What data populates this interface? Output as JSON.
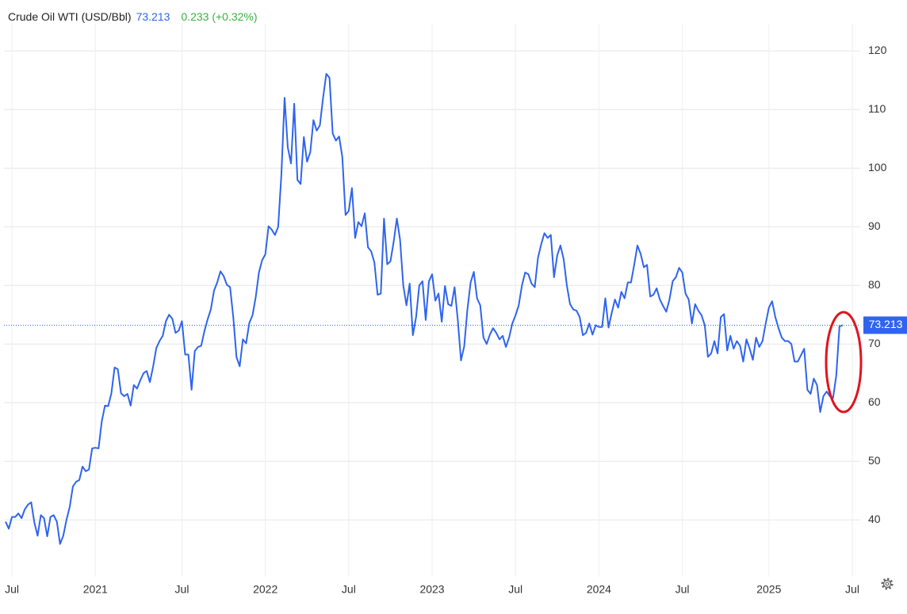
{
  "chart_data": {
    "type": "line",
    "title": "Crude Oil WTI (USD/Bbl)",
    "change": "0.233 (+0.32%)",
    "categories": [
      null,
      null,
      "Jul",
      null,
      null,
      null,
      null,
      null,
      null,
      null,
      null,
      null,
      null,
      null,
      null,
      null,
      null,
      null,
      null,
      null,
      null,
      null,
      null,
      null,
      null,
      null,
      null,
      null,
      "2021",
      null,
      null,
      null,
      null,
      null,
      null,
      null,
      null,
      null,
      null,
      null,
      null,
      null,
      null,
      null,
      null,
      null,
      null,
      null,
      null,
      null,
      null,
      null,
      null,
      null,
      null,
      "Jul",
      null,
      null,
      null,
      null,
      null,
      null,
      null,
      null,
      null,
      null,
      null,
      null,
      null,
      null,
      null,
      null,
      null,
      null,
      null,
      null,
      null,
      null,
      null,
      null,
      null,
      "2022",
      null,
      null,
      null,
      null,
      null,
      null,
      null,
      null,
      null,
      null,
      null,
      null,
      null,
      null,
      null,
      null,
      null,
      null,
      null,
      null,
      null,
      null,
      null,
      null,
      null,
      "Jul",
      null,
      null,
      null,
      null,
      null,
      null,
      null,
      null,
      null,
      null,
      null,
      null,
      null,
      null,
      null,
      null,
      null,
      null,
      null,
      null,
      null,
      null,
      null,
      null,
      null,
      "2023",
      null,
      null,
      null,
      null,
      null,
      null,
      null,
      null,
      null,
      null,
      null,
      null,
      null,
      null,
      null,
      null,
      null,
      null,
      null,
      null,
      null,
      null,
      null,
      null,
      null,
      "Jul",
      null,
      null,
      null,
      null,
      null,
      null,
      null,
      null,
      null,
      null,
      null,
      null,
      null,
      null,
      null,
      null,
      null,
      null,
      null,
      null,
      null,
      null,
      null,
      null,
      null,
      "2024",
      null,
      null,
      null,
      null,
      null,
      null,
      null,
      null,
      null,
      null,
      null,
      null,
      null,
      null,
      null,
      null,
      null,
      null,
      null,
      null,
      null,
      null,
      null,
      null,
      null,
      "Jul",
      null,
      null,
      null,
      null,
      null,
      null,
      null,
      null,
      null,
      null,
      null,
      null,
      null,
      null,
      null,
      null,
      null,
      null,
      null,
      null,
      null,
      null,
      null,
      null,
      null,
      null,
      "2025",
      null,
      null,
      null,
      null,
      null,
      null,
      null,
      null,
      null,
      null,
      null,
      null,
      null,
      null,
      null,
      null,
      null,
      null,
      null,
      null,
      null,
      null,
      null,
      null,
      null,
      "Jul"
    ],
    "series": [
      {
        "color": "#2f64ee",
        "values": [
          39.7,
          38.5,
          40.5,
          40.5,
          41.1,
          40.3,
          41.8,
          42.6,
          43.0,
          39.5,
          37.3,
          40.8,
          40.3,
          37.2,
          40.5,
          40.8,
          39.7,
          35.9,
          37.3,
          40.0,
          42.2,
          45.7,
          46.5,
          46.8,
          49.1,
          48.3,
          48.6,
          52.2,
          52.3,
          52.2,
          56.8,
          59.5,
          59.4,
          61.6,
          66.0,
          65.7,
          61.6,
          61.1,
          61.5,
          59.5,
          63.0,
          62.4,
          63.8,
          65.0,
          65.4,
          63.5,
          66.1,
          69.3,
          70.5,
          71.4,
          73.9,
          75.0,
          74.3,
          71.9,
          72.3,
          73.9,
          68.2,
          68.2,
          62.2,
          68.8,
          69.5,
          69.7,
          72.2,
          74.2,
          75.9,
          79.1,
          80.5,
          82.4,
          81.6,
          80.1,
          79.7,
          74.6,
          67.8,
          66.2,
          70.8,
          70.1,
          73.6,
          74.9,
          78.0,
          82.2,
          84.3,
          85.3,
          90.1,
          89.5,
          88.6,
          90.0,
          98.9,
          112.0,
          103.5,
          100.8,
          111.0,
          98.0,
          97.3,
          105.3,
          101.1,
          102.7,
          108.2,
          106.4,
          107.3,
          112.0,
          116.1,
          115.4,
          105.9,
          104.7,
          105.4,
          101.9,
          92.0,
          92.7,
          96.6,
          88.1,
          90.8,
          90.1,
          92.3,
          86.5,
          85.8,
          83.9,
          78.4,
          78.6,
          91.4,
          83.6,
          84.1,
          87.4,
          91.4,
          87.8,
          80.0,
          76.6,
          80.3,
          71.5,
          74.6,
          80.0,
          80.7,
          74.1,
          80.7,
          81.9,
          77.4,
          78.6,
          73.8,
          79.9,
          76.8,
          76.5,
          79.7,
          74.1,
          67.2,
          69.6,
          75.9,
          80.5,
          82.3,
          77.8,
          76.6,
          71.1,
          70.0,
          71.6,
          72.7,
          71.9,
          70.8,
          71.4,
          69.5,
          71.1,
          73.5,
          74.9,
          76.6,
          80.0,
          82.2,
          81.9,
          80.3,
          79.7,
          84.7,
          87.0,
          88.9,
          88.1,
          88.6,
          81.4,
          85.1,
          86.8,
          84.5,
          80.0,
          76.8,
          75.9,
          75.7,
          74.6,
          71.5,
          71.9,
          73.5,
          71.6,
          73.2,
          72.9,
          72.9,
          77.8,
          72.8,
          75.3,
          77.6,
          76.2,
          78.9,
          77.8,
          80.5,
          80.5,
          83.5,
          86.8,
          85.4,
          83.1,
          83.5,
          78.1,
          78.4,
          79.5,
          77.6,
          76.5,
          75.5,
          77.6,
          80.7,
          81.4,
          83.0,
          82.2,
          78.6,
          77.6,
          73.5,
          76.8,
          75.7,
          74.9,
          73.2,
          67.8,
          68.4,
          70.5,
          68.4,
          74.6,
          75.1,
          68.9,
          71.4,
          69.2,
          70.5,
          69.7,
          67.0,
          70.8,
          69.2,
          67.3,
          71.1,
          69.5,
          70.5,
          73.5,
          76.2,
          77.3,
          74.6,
          72.7,
          71.1,
          70.5,
          70.5,
          70.0,
          67.0,
          67.0,
          68.1,
          69.2,
          62.2,
          61.5,
          64.1,
          63.0,
          58.4,
          61.1,
          61.9,
          61.1,
          60.8,
          64.6,
          73.0,
          73.213,
          null,
          null,
          null
        ]
      }
    ],
    "ylim": [
      30.3,
      124.6
    ],
    "yticks": [
      40,
      50,
      60,
      70,
      80,
      90,
      100,
      110,
      120
    ],
    "grid": true
  }
}
